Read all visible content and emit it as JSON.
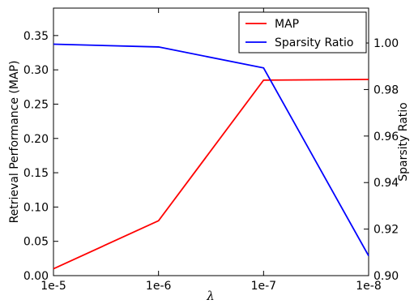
{
  "chart_data": {
    "type": "line",
    "x": [
      "1e-5",
      "1e-6",
      "1e-7",
      "1e-8"
    ],
    "xlabel": "λ",
    "series": [
      {
        "name": "MAP",
        "axis": "left",
        "color": "#ff0000",
        "values": [
          0.01,
          0.08,
          0.285,
          0.286
        ]
      },
      {
        "name": "Sparsity Ratio",
        "axis": "right",
        "color": "#0000ff",
        "values": [
          0.9995,
          0.9983,
          0.9893,
          0.9085
        ]
      }
    ],
    "left_axis": {
      "label": "Retrieval Performance (MAP)",
      "range": [
        0.0,
        0.39
      ],
      "ticks": [
        "0.00",
        "0.05",
        "0.10",
        "0.15",
        "0.20",
        "0.25",
        "0.30",
        "0.35"
      ]
    },
    "right_axis": {
      "label": "Sparsity Ratio",
      "range": [
        0.9,
        1.015
      ],
      "ticks": [
        "0.90",
        "0.92",
        "0.94",
        "0.96",
        "0.98",
        "1.00"
      ]
    },
    "legend": {
      "placement": "top-right"
    },
    "grid": false
  }
}
